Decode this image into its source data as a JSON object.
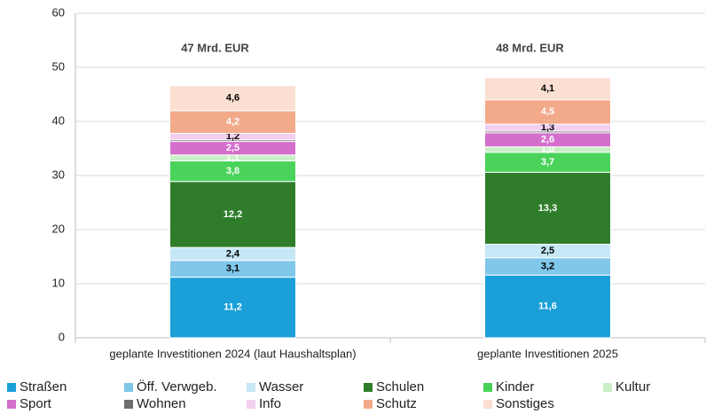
{
  "chart_data": {
    "type": "stacked_bar",
    "categories": [
      "geplante Investitionen 2024 (laut Haushaltsplan)",
      "geplante Investitionen 2025"
    ],
    "annotations": [
      "47 Mrd. EUR",
      "48 Mrd. EUR"
    ],
    "ylim": [
      0,
      60
    ],
    "yticks": [
      0,
      10,
      20,
      30,
      40,
      50,
      60
    ],
    "grid": true,
    "legend": "bottom",
    "series": [
      {
        "name": "Straßen",
        "color": "#1a9fd9",
        "label_color": "#ffffff",
        "values": [
          11.2,
          11.6
        ],
        "value_labels": [
          "11,2",
          "11,6"
        ]
      },
      {
        "name": "Öff. Verwgeb.",
        "color": "#80c7ea",
        "label_color": "#000000",
        "values": [
          3.1,
          3.2
        ],
        "value_labels": [
          "3,1",
          "3,2"
        ]
      },
      {
        "name": "Wasser",
        "color": "#c6e7f6",
        "label_color": "#000000",
        "values": [
          2.4,
          2.5
        ],
        "value_labels": [
          "2,4",
          "2,5"
        ]
      },
      {
        "name": "Schulen",
        "color": "#2f7d2b",
        "label_color": "#ffffff",
        "values": [
          12.2,
          13.3
        ],
        "value_labels": [
          "12,2",
          "13,3"
        ]
      },
      {
        "name": "Kinder",
        "color": "#4ad35a",
        "label_color": "#ffffff",
        "values": [
          3.8,
          3.7
        ],
        "value_labels": [
          "3,8",
          "3,7"
        ]
      },
      {
        "name": "Kultur",
        "color": "#c8efc5",
        "label_color": "#ffffff",
        "values": [
          1.1,
          1.0
        ],
        "value_labels": [
          "1,1",
          "1,0"
        ]
      },
      {
        "name": "Sport",
        "color": "#d46fcd",
        "label_color": "#ffffff",
        "values": [
          2.5,
          2.6
        ],
        "value_labels": [
          "2,5",
          "2,6"
        ]
      },
      {
        "name": "Wohnen",
        "color": "#6d6d6d",
        "values": [
          0.3,
          0.3
        ]
      },
      {
        "name": "Info",
        "color": "#f3cff0",
        "label_color": "#000000",
        "values": [
          1.2,
          1.3
        ],
        "value_labels": [
          "1,2",
          "1,3"
        ]
      },
      {
        "name": "Schutz",
        "color": "#f2aa8a",
        "label_color": "#ffffff",
        "values": [
          4.2,
          4.5
        ],
        "value_labels": [
          "4,2",
          "4,5"
        ]
      },
      {
        "name": "Sonstiges",
        "color": "#fadfd2",
        "label_color": "#000000",
        "values": [
          4.6,
          4.1
        ],
        "value_labels": [
          "4,6",
          "4,1"
        ]
      }
    ]
  }
}
